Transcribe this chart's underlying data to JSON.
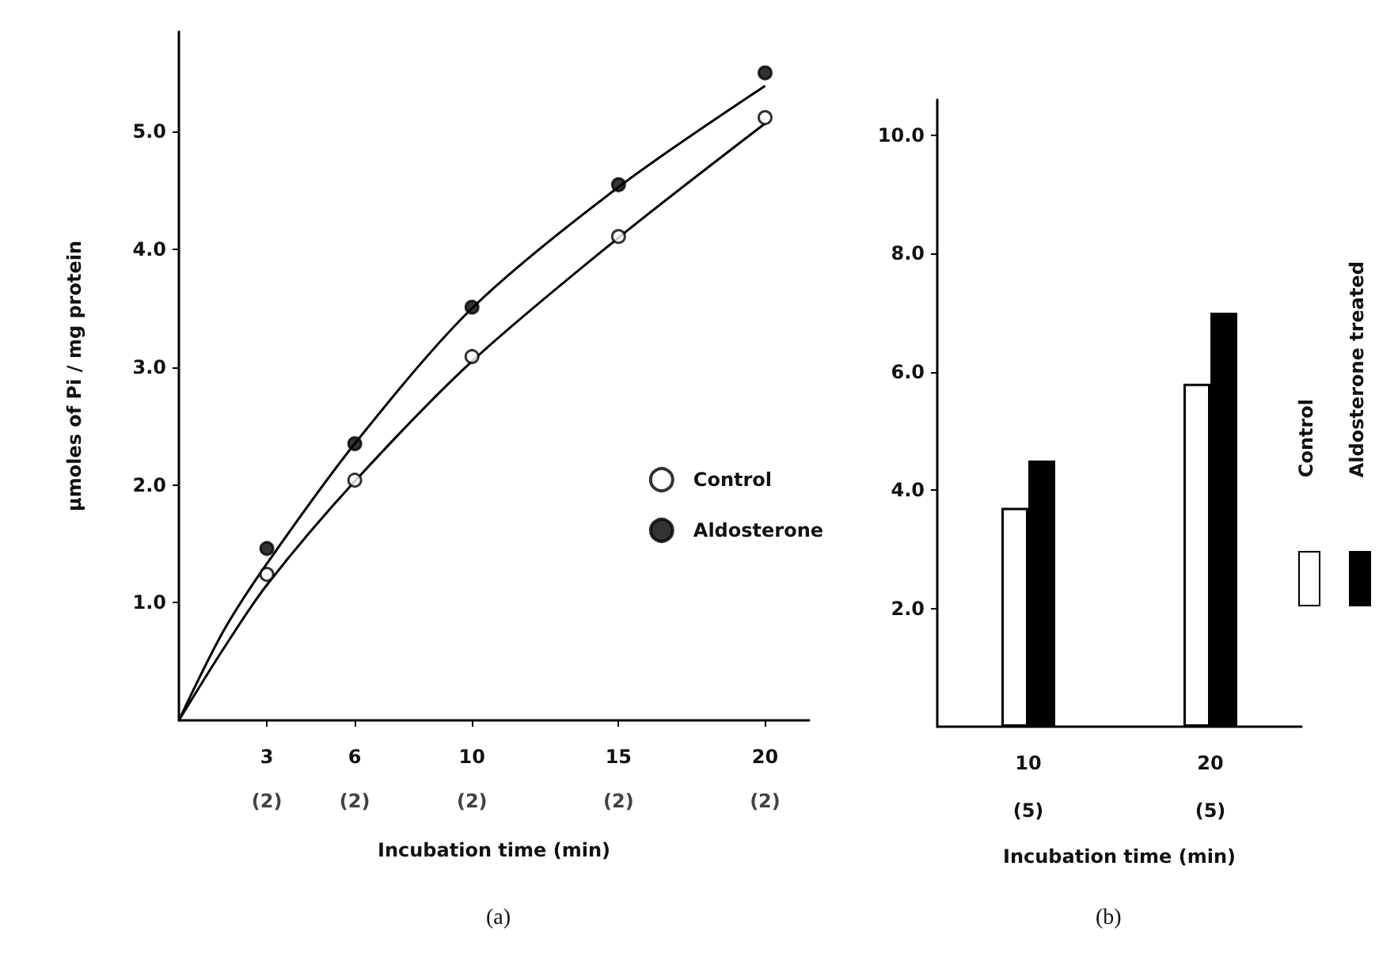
{
  "chart_data": [
    {
      "type": "scatter",
      "title": "(a)",
      "xlabel": "Incubation time (min)",
      "ylabel": "μmoles of Pi / mg protein",
      "x": [
        3,
        6,
        10,
        15,
        20
      ],
      "xlim": [
        0,
        21.5
      ],
      "xticks": [
        3,
        6,
        10,
        15,
        20
      ],
      "annotations": [
        "(2)",
        "(2)",
        "(2)",
        "(2)",
        "(2)"
      ],
      "ylim": [
        0,
        5.85
      ],
      "yticks": [
        {
          "value": 1,
          "label": "1.0"
        },
        {
          "value": 2,
          "label": "2.0"
        },
        {
          "value": 3,
          "label": "3.0"
        },
        {
          "value": 4,
          "label": "4.0"
        },
        {
          "value": 5,
          "label": "5.0"
        }
      ],
      "marker": "circle",
      "legend": "right",
      "series": [
        {
          "type": "line",
          "marker": "none",
          "color": "#000000",
          "x": [
            0,
            1.5,
            3,
            6,
            10,
            15,
            20
          ],
          "values": [
            0,
            0.6,
            1.15,
            2.03,
            3.05,
            4.1,
            5.07
          ]
        },
        {
          "type": "line",
          "marker": "none",
          "color": "#000000",
          "x": [
            0,
            1.5,
            3,
            6,
            10,
            15,
            20
          ],
          "values": [
            0,
            0.75,
            1.33,
            2.35,
            3.5,
            4.53,
            5.39
          ]
        },
        {
          "name": "Control",
          "color": "#ffffff",
          "values": [
            1.24,
            2.04,
            3.09,
            4.11,
            5.12
          ]
        },
        {
          "name": "Aldosterone",
          "color": "#000000",
          "values": [
            1.46,
            2.35,
            3.51,
            4.55,
            5.5
          ]
        }
      ]
    },
    {
      "type": "bar",
      "title": "(b)",
      "xlabel": "Incubation time (min)",
      "categories": [
        "10\n(5)",
        "20\n(5)"
      ],
      "ylim": [
        0,
        10.6
      ],
      "yticks": [
        {
          "value": 2,
          "label": "2.0"
        },
        {
          "value": 4,
          "label": "4.0"
        },
        {
          "value": 6,
          "label": "6.0"
        },
        {
          "value": 8,
          "label": "8.0"
        },
        {
          "value": 10,
          "label": "10.0"
        }
      ],
      "legend": "right",
      "series": [
        {
          "name": "Control",
          "color": "#ffffff",
          "values": [
            3.7,
            5.8
          ]
        },
        {
          "name": "Aldosterone treated",
          "color": "#000000",
          "values": [
            4.5,
            7.0
          ]
        }
      ]
    }
  ]
}
